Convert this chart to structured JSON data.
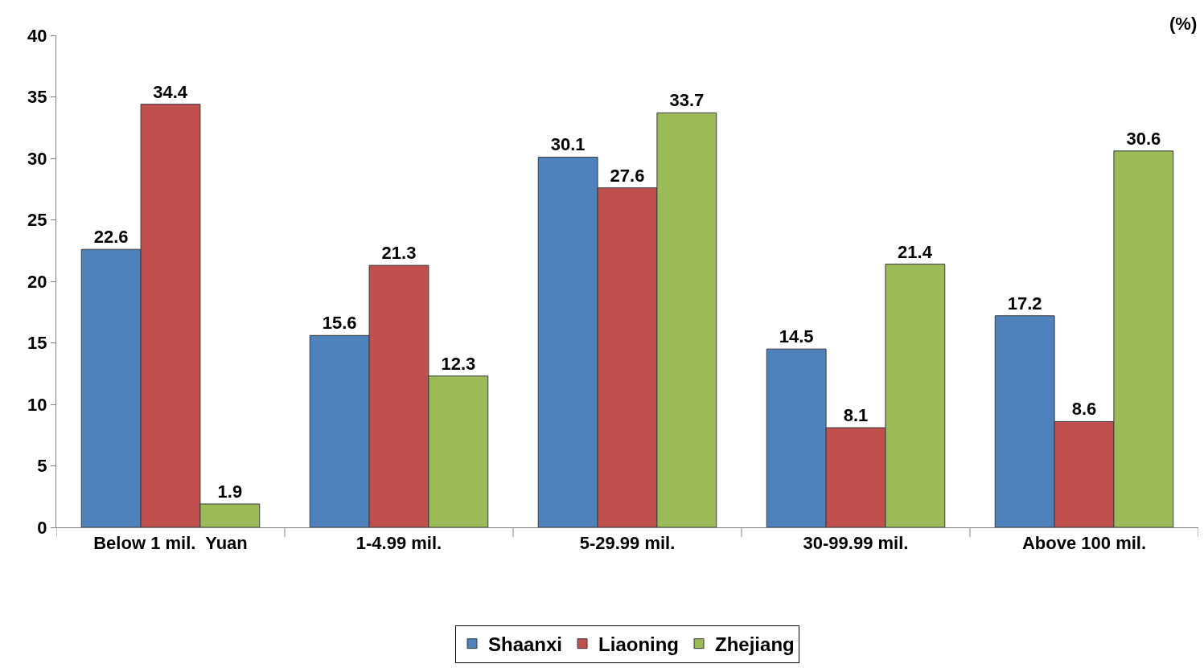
{
  "chart_data": {
    "type": "bar",
    "categories": [
      "Below 1 mil.  Yuan",
      "1-4.99 mil.",
      "5-29.99 mil.",
      "30-99.99 mil.",
      "Above 100 mil."
    ],
    "series": [
      {
        "name": "Shaanxi",
        "color": "#4f81bd",
        "values": [
          22.6,
          15.6,
          30.1,
          14.5,
          17.2
        ]
      },
      {
        "name": "Liaoning",
        "color": "#c0504d",
        "values": [
          34.4,
          21.3,
          27.6,
          8.1,
          8.6
        ]
      },
      {
        "name": "Zhejiang",
        "color": "#9bbb59",
        "values": [
          1.9,
          12.3,
          33.7,
          21.4,
          30.6
        ]
      }
    ],
    "ylim": [
      0,
      40
    ],
    "yticks": [
      0,
      5,
      10,
      15,
      20,
      25,
      30,
      35,
      40
    ],
    "grid": false,
    "legend": "bottom",
    "data_labels": true,
    "annotations": [
      "(%)"
    ]
  }
}
